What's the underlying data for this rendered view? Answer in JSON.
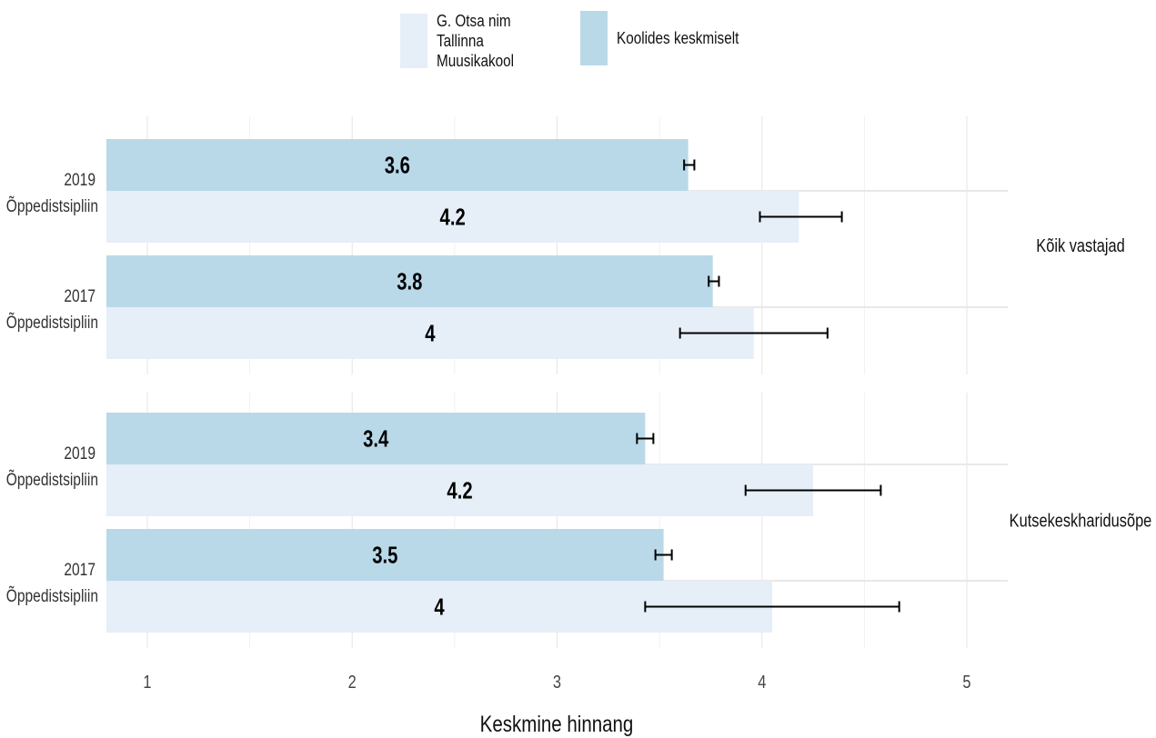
{
  "legend": {
    "items": [
      {
        "label": "G. Otsa nim Tallinna Muusikakool",
        "color": "#e6eef8"
      },
      {
        "label": "Koolides keskmiselt",
        "color": "#b9d9e9"
      }
    ]
  },
  "chart_data": {
    "type": "bar",
    "orientation": "horizontal",
    "xlabel": "Keskmine hinnang",
    "xlim": [
      0.8,
      5.2
    ],
    "xticks": [
      "1",
      "2",
      "3",
      "4",
      "5"
    ],
    "grid": true,
    "legend_position": "top",
    "colors": {
      "school": "#e6eef8",
      "average": "#b9d9e9"
    },
    "panels": [
      {
        "facet_label": "Kõik vastajad",
        "groups": [
          {
            "year": "2019",
            "category": "Õppedistsipliin",
            "average": {
              "value": 3.64,
              "label": "3.6",
              "err": [
                3.62,
                3.67
              ]
            },
            "school": {
              "value": 4.18,
              "label": "4.2",
              "err": [
                3.99,
                4.39
              ]
            }
          },
          {
            "year": "2017",
            "category": "Õppedistsipliin",
            "average": {
              "value": 3.76,
              "label": "3.8",
              "err": [
                3.74,
                3.79
              ]
            },
            "school": {
              "value": 3.96,
              "label": "4",
              "err": [
                3.6,
                4.32
              ]
            }
          }
        ]
      },
      {
        "facet_label": "Kutsekeskharidusõpe",
        "groups": [
          {
            "year": "2019",
            "category": "Õppedistsipliin",
            "average": {
              "value": 3.43,
              "label": "3.4",
              "err": [
                3.39,
                3.47
              ]
            },
            "school": {
              "value": 4.25,
              "label": "4.2",
              "err": [
                3.92,
                4.58
              ]
            }
          },
          {
            "year": "2017",
            "category": "Õppedistsipliin",
            "average": {
              "value": 3.52,
              "label": "3.5",
              "err": [
                3.48,
                3.56
              ]
            },
            "school": {
              "value": 4.05,
              "label": "4",
              "err": [
                3.43,
                4.67
              ]
            }
          }
        ]
      }
    ]
  }
}
